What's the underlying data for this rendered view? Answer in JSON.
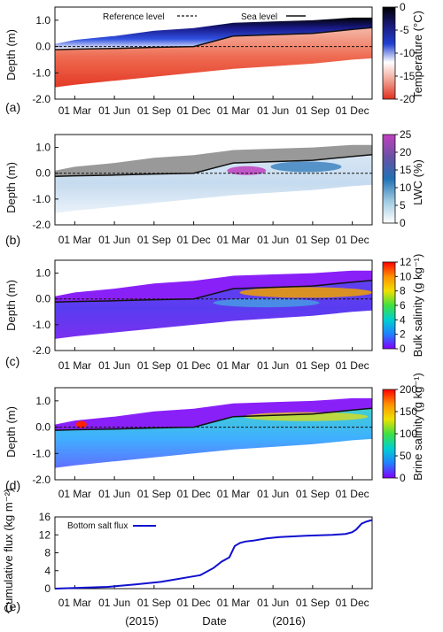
{
  "figure": {
    "xlabel": "Date",
    "year_labels": [
      "(2015)",
      "(2016)"
    ],
    "month_ticks": [
      "01 Mar",
      "01 Jun",
      "01 Sep",
      "01 Dec",
      "01 Mar",
      "01 Jun",
      "01 Sep",
      "01 Dec"
    ]
  },
  "colors": {
    "temperature": [
      "#000000",
      "#1a1a7a",
      "#2040d0",
      "#ffffff",
      "#f0a090",
      "#e03020"
    ],
    "lwc": [
      "#ffffff",
      "#9ecae1",
      "#2171b5",
      "#6a51a3",
      "#c040c0"
    ],
    "rainbow": [
      "#8000ff",
      "#2080ff",
      "#00d0d0",
      "#40e040",
      "#f0e000",
      "#ff9000",
      "#ff0000"
    ],
    "snow_grey": "#999999",
    "salt_flux_line": "#1010d0"
  },
  "chart_data": [
    {
      "type": "heatmap",
      "panel": "(a)",
      "ylabel": "Depth (m)",
      "yticks": [
        "1.0",
        "0.0",
        "-1.0",
        "-2.0"
      ],
      "ylim": [
        -2.0,
        1.5
      ],
      "colorbar": {
        "label": "Temperature (°C)",
        "ticks": [
          "0",
          "-5",
          "-10",
          "-15",
          "-20"
        ],
        "range": [
          -20,
          0
        ]
      },
      "legend": [
        "Reference level",
        "Sea level"
      ],
      "x_months": [
        0,
        1.5,
        4.5,
        7.5,
        10.5,
        13.5,
        16.5,
        19.5,
        22.5,
        24
      ],
      "sea_level": [
        -0.12,
        -0.1,
        -0.07,
        -0.03,
        0.0,
        0.4,
        0.45,
        0.5,
        0.65,
        0.72
      ],
      "surface": [
        0.1,
        0.25,
        0.4,
        0.6,
        0.7,
        0.9,
        0.95,
        1.0,
        1.1,
        1.1
      ],
      "bottom": [
        -1.55,
        -1.45,
        -1.3,
        -1.15,
        -1.0,
        -0.85,
        -0.75,
        -0.65,
        -0.5,
        -0.45
      ]
    },
    {
      "type": "heatmap",
      "panel": "(b)",
      "ylabel": "Depth (m)",
      "yticks": [
        "1.0",
        "0.0",
        "-1.0",
        "-2.0"
      ],
      "ylim": [
        -2.0,
        1.5
      ],
      "colorbar": {
        "label": "LWC (%)",
        "ticks": [
          "25",
          "20",
          "15",
          "10",
          "5",
          "0"
        ],
        "range": [
          0,
          25
        ]
      }
    },
    {
      "type": "heatmap",
      "panel": "(c)",
      "ylabel": "Depth (m)",
      "yticks": [
        "1.0",
        "0.0",
        "-1.0",
        "-2.0"
      ],
      "ylim": [
        -2.0,
        1.5
      ],
      "colorbar": {
        "label": "Bulk salinity (g kg⁻¹)",
        "ticks": [
          "12",
          "10",
          "8",
          "6",
          "4",
          "2",
          "0"
        ],
        "range": [
          0,
          12
        ]
      }
    },
    {
      "type": "heatmap",
      "panel": "(d)",
      "ylabel": "Depth (m)",
      "yticks": [
        "1.0",
        "0.0",
        "-1.0",
        "-2.0"
      ],
      "ylim": [
        -2.0,
        1.5
      ],
      "colorbar": {
        "label": "Brine salinity (g kg⁻¹)",
        "ticks": [
          "200",
          "150",
          "100",
          "50",
          "0"
        ],
        "range": [
          0,
          200
        ]
      }
    },
    {
      "type": "line",
      "panel": "(e)",
      "ylabel": "Cumulative flux (kg m⁻²)",
      "yticks": [
        "16",
        "12",
        "8",
        "4",
        "0"
      ],
      "ylim": [
        0,
        16
      ],
      "series": [
        {
          "name": "Bottom salt flux",
          "x": [
            0,
            2,
            4,
            6,
            8,
            9,
            10,
            11,
            12,
            12.6,
            13.2,
            13.6,
            14,
            14.4,
            15,
            16,
            17,
            19,
            21,
            22,
            22.5,
            22.8,
            23.2,
            23.6,
            24
          ],
          "y": [
            0,
            0.2,
            0.4,
            0.9,
            1.5,
            2.0,
            2.5,
            3.0,
            4.6,
            6.0,
            7.0,
            9.5,
            10.2,
            10.5,
            10.7,
            11.2,
            11.5,
            11.8,
            12.0,
            12.2,
            12.6,
            13.2,
            14.5,
            15.0,
            15.3
          ]
        }
      ]
    }
  ]
}
